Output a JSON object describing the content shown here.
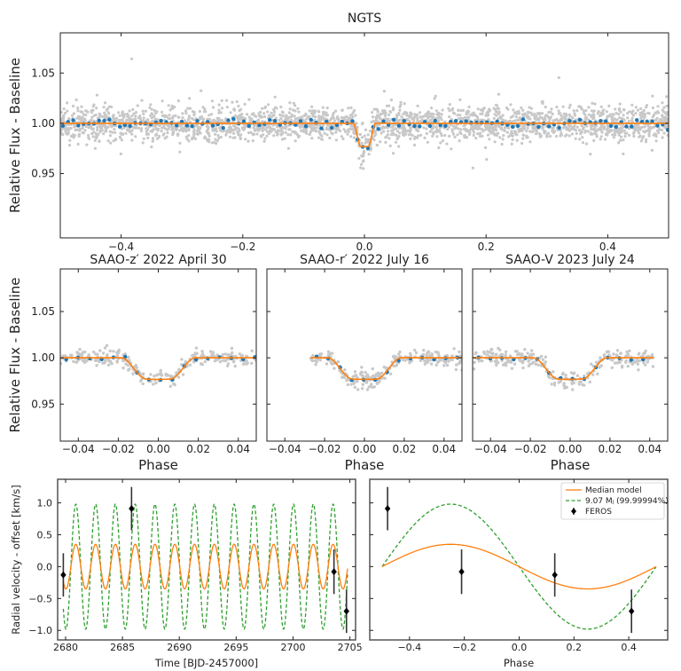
{
  "colors": {
    "raw": "#c8c8c8",
    "binned": "#1f77b4",
    "model": "#ff7f0e",
    "upper_limit_model": "#2ca02c",
    "rv_points": "#000000"
  },
  "chart_data": [
    {
      "type": "scatter",
      "title": "NGTS",
      "xlabel": "",
      "ylabel": "Relative Flux - Baseline",
      "xlim": [
        -0.5,
        0.5
      ],
      "ylim": [
        0.886,
        1.09
      ],
      "xticks": [
        {
          "v": -0.4,
          "label": "−0.4"
        },
        {
          "v": -0.2,
          "label": "−0.2"
        },
        {
          "v": 0.0,
          "label": "0.0"
        },
        {
          "v": 0.2,
          "label": "0.2"
        },
        {
          "v": 0.4,
          "label": "0.4"
        }
      ],
      "yticks": [
        {
          "v": 0.95,
          "label": "0.95"
        },
        {
          "v": 1.0,
          "label": "1.00"
        },
        {
          "v": 1.05,
          "label": "1.05"
        }
      ],
      "transit_depth": 0.023,
      "baseline": 1.0,
      "data_range": [
        -0.5,
        0.5
      ]
    },
    {
      "type": "scatter",
      "title": "SAAO-z′ 2022 April 30",
      "xlabel": "Phase",
      "ylabel": "Relative Flux - Baseline",
      "xlim": [
        -0.049,
        0.049
      ],
      "ylim": [
        0.91,
        1.096
      ],
      "xticks": [
        {
          "v": -0.04,
          "label": "−0.04"
        },
        {
          "v": -0.02,
          "label": "−0.02"
        },
        {
          "v": 0.0,
          "label": "0.00"
        },
        {
          "v": 0.02,
          "label": "0.02"
        },
        {
          "v": 0.04,
          "label": "0.04"
        }
      ],
      "yticks": [
        {
          "v": 0.95,
          "label": "0.95"
        },
        {
          "v": 1.0,
          "label": "1.00"
        },
        {
          "v": 1.05,
          "label": "1.05"
        }
      ],
      "transit_depth": 0.023,
      "baseline": 1.0,
      "data_range": [
        -0.049,
        0.049
      ]
    },
    {
      "type": "scatter",
      "title": "SAAO-r′ 2022 July 16",
      "xlabel": "Phase",
      "ylabel": "",
      "xlim": [
        -0.049,
        0.049
      ],
      "ylim": [
        0.91,
        1.096
      ],
      "xticks": [
        {
          "v": -0.04,
          "label": "−0.04"
        },
        {
          "v": -0.02,
          "label": "−0.02"
        },
        {
          "v": 0.0,
          "label": "0.00"
        },
        {
          "v": 0.02,
          "label": "0.02"
        },
        {
          "v": 0.04,
          "label": "0.04"
        }
      ],
      "yticks": [
        {
          "v": 0.95,
          "label": ""
        },
        {
          "v": 1.0,
          "label": ""
        },
        {
          "v": 1.05,
          "label": ""
        }
      ],
      "transit_depth": 0.023,
      "baseline": 1.0,
      "data_range": [
        -0.027,
        0.049
      ]
    },
    {
      "type": "scatter",
      "title": "SAAO-V 2023 July 24",
      "xlabel": "Phase",
      "ylabel": "",
      "xlim": [
        -0.049,
        0.049
      ],
      "ylim": [
        0.91,
        1.096
      ],
      "xticks": [
        {
          "v": -0.04,
          "label": "−0.04"
        },
        {
          "v": -0.02,
          "label": "−0.02"
        },
        {
          "v": 0.0,
          "label": "0.00"
        },
        {
          "v": 0.02,
          "label": "0.02"
        },
        {
          "v": 0.04,
          "label": "0.04"
        }
      ],
      "yticks": [
        {
          "v": 0.95,
          "label": ""
        },
        {
          "v": 1.0,
          "label": ""
        },
        {
          "v": 1.05,
          "label": ""
        }
      ],
      "transit_depth": 0.023,
      "baseline": 1.0,
      "data_range": [
        -0.049,
        0.042
      ]
    },
    {
      "type": "line",
      "title": "",
      "xlabel": "Time [BJD-2457000]",
      "ylabel": "Radial velocity - offset [km/s]",
      "xlim": [
        2679.3,
        2705.5
      ],
      "ylim": [
        -1.15,
        1.37
      ],
      "xticks": [
        {
          "v": 2680,
          "label": "2680"
        },
        {
          "v": 2685,
          "label": "2685"
        },
        {
          "v": 2690,
          "label": "2690"
        },
        {
          "v": 2695,
          "label": "2695"
        },
        {
          "v": 2700,
          "label": "2700"
        },
        {
          "v": 2705,
          "label": "2705"
        }
      ],
      "yticks": [
        {
          "v": -1.0,
          "label": "−1.0"
        },
        {
          "v": -0.5,
          "label": "−0.5"
        },
        {
          "v": 0.0,
          "label": "0.0"
        },
        {
          "v": 0.5,
          "label": "0.5"
        },
        {
          "v": 1.0,
          "label": "1.0"
        }
      ],
      "series": [
        {
          "name": "Median model",
          "semi_amplitude": 0.35
        },
        {
          "name": "9.07 Mⱼ (99.99994%)",
          "semi_amplitude": 0.98
        },
        {
          "name": "FEROS",
          "points": [
            {
              "x": 2679.8,
              "y": -0.13,
              "err": 0.34
            },
            {
              "x": 2685.8,
              "y": 0.91,
              "err": 0.34
            },
            {
              "x": 2703.6,
              "y": -0.08,
              "err": 0.35
            },
            {
              "x": 2704.7,
              "y": -0.7,
              "err": 0.34
            }
          ]
        }
      ]
    },
    {
      "type": "line",
      "title": "",
      "xlabel": "Phase",
      "ylabel": "",
      "xlim": [
        -0.545,
        0.542
      ],
      "ylim": [
        -1.15,
        1.37
      ],
      "xticks": [
        {
          "v": -0.4,
          "label": "−0.4"
        },
        {
          "v": -0.2,
          "label": "−0.2"
        },
        {
          "v": 0.0,
          "label": "0.0"
        },
        {
          "v": 0.2,
          "label": "0.2"
        },
        {
          "v": 0.4,
          "label": "0.4"
        }
      ],
      "yticks": [
        {
          "v": -1.0,
          "label": ""
        },
        {
          "v": -0.5,
          "label": ""
        },
        {
          "v": 0.0,
          "label": ""
        },
        {
          "v": 0.5,
          "label": ""
        },
        {
          "v": 1.0,
          "label": ""
        }
      ],
      "legend": {
        "position": "top-right",
        "entries": [
          "Median model",
          "9.07 Mⱼ (99.99994%)",
          "FEROS"
        ]
      },
      "series": [
        {
          "name": "Median model",
          "semi_amplitude": 0.35
        },
        {
          "name": "9.07 Mⱼ (99.99994%)",
          "semi_amplitude": 0.98
        },
        {
          "name": "FEROS",
          "points": [
            {
              "x": -0.48,
              "y": 0.91,
              "err": 0.34
            },
            {
              "x": -0.21,
              "y": -0.08,
              "err": 0.35
            },
            {
              "x": 0.13,
              "y": -0.13,
              "err": 0.34
            },
            {
              "x": 0.41,
              "y": -0.7,
              "err": 0.34
            }
          ]
        }
      ]
    }
  ]
}
